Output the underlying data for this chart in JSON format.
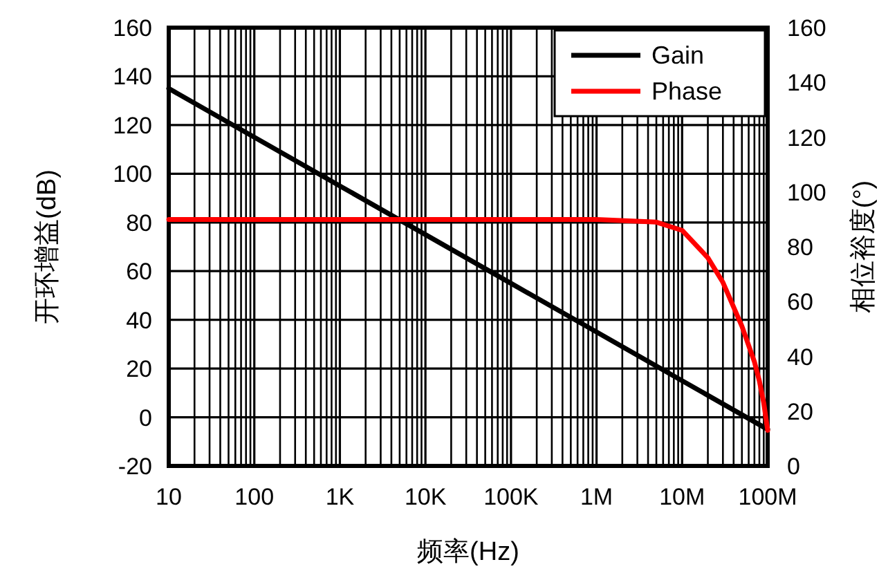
{
  "chart_data": {
    "type": "line",
    "xlabel": "频率(Hz)",
    "ylabel": "开环增益(dB)",
    "y2label": "相位裕度(°)",
    "log": "x",
    "grid": true,
    "legend": "top right",
    "marker": "none",
    "xlim": [
      10,
      100000000
    ],
    "xticks": [
      10,
      100,
      {
        "value": 1000,
        "label": "1K"
      },
      {
        "value": 10000,
        "label": "10K"
      },
      {
        "value": 100000,
        "label": "100K"
      },
      {
        "value": 1000000,
        "label": "1M"
      },
      {
        "value": 10000000,
        "label": "10M"
      },
      {
        "value": 100000000,
        "label": "100M"
      }
    ],
    "ylim": [
      -20,
      160
    ],
    "yticks": [
      -20,
      0,
      20,
      40,
      60,
      80,
      100,
      120,
      140,
      160
    ],
    "y2lim": [
      0,
      160
    ],
    "y2ticks": [
      0,
      20,
      40,
      60,
      80,
      100,
      120,
      140,
      160
    ],
    "series": [
      {
        "name": "Gain",
        "color": "#000000",
        "x": [
          10,
          100,
          1000,
          10000,
          100000,
          1000000,
          10000000,
          100000000
        ],
        "values": [
          135,
          115,
          95,
          75,
          55,
          35,
          15,
          -5
        ]
      },
      {
        "name": "Phase",
        "color": "#ff0000",
        "axis": "y2",
        "x": [
          10,
          1000000,
          5000000,
          10000000,
          20000000,
          30000000,
          50000000,
          70000000,
          80000000,
          90000000,
          100000000
        ],
        "values": [
          90,
          90,
          89,
          86,
          76,
          67,
          51,
          38,
          31,
          23,
          13
        ]
      }
    ]
  }
}
